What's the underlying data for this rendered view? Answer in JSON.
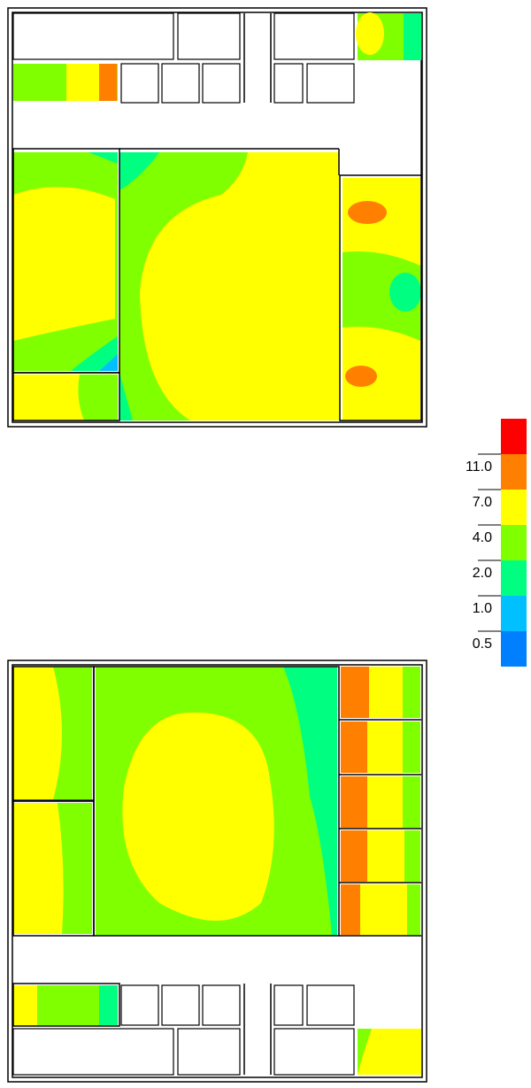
{
  "legend": {
    "labels": [
      "11.0",
      "7.0",
      "4.0",
      "2.0",
      "1.0",
      "0.5"
    ],
    "colors": [
      "#ff0000",
      "#ff8000",
      "#ffff00",
      "#80ff00",
      "#00ff80",
      "#00c0ff",
      "#0080ff"
    ]
  }
}
